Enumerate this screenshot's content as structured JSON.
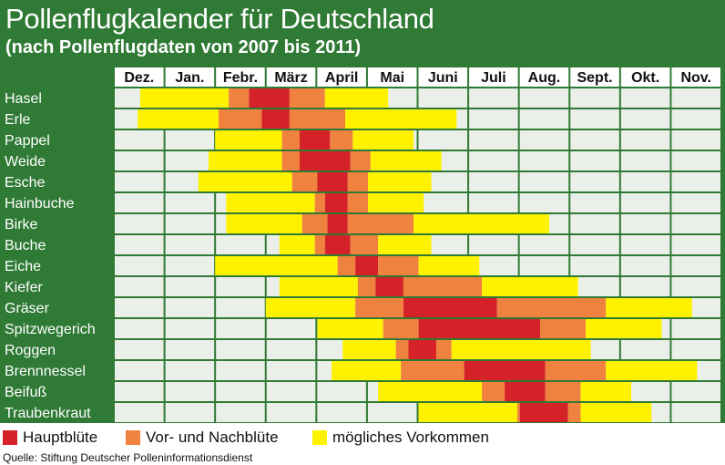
{
  "title": "Pollenflugkalender für Deutschland",
  "subtitle": "(nach Pollenflugdaten von 2007 bis 2011)",
  "source": "Quelle: Stiftung Deutscher Polleninformationsdienst",
  "colors": {
    "header": "#2f7a35",
    "grid_cell": "#eaf0e9",
    "hauptbluete": "#d52128",
    "vor_nachbluete": "#f0823f",
    "moegliches_vorkommen": "#fff200"
  },
  "legend": [
    {
      "label": "Hauptblüte",
      "color": "#d52128"
    },
    {
      "label": "Vor- und Nachblüte",
      "color": "#f0823f"
    },
    {
      "label": "mögliches Vorkommen",
      "color": "#fff200"
    }
  ],
  "chart_data": {
    "type": "heatmap",
    "x_unit": "month index (0 = Dez. start, 12 = Nov. end)",
    "months": [
      "Dez.",
      "Jan.",
      "Febr.",
      "März",
      "April",
      "Mai",
      "Juni",
      "Juli",
      "Aug.",
      "Sept.",
      "Okt.",
      "Nov."
    ],
    "rows": [
      {
        "plant": "Hasel",
        "segments": [
          {
            "start": 0.52,
            "end": 2.27,
            "level": "moeglich"
          },
          {
            "start": 2.27,
            "end": 2.67,
            "level": "vornach"
          },
          {
            "start": 2.67,
            "end": 3.47,
            "level": "haupt"
          },
          {
            "start": 3.47,
            "end": 4.17,
            "level": "vornach"
          },
          {
            "start": 4.17,
            "end": 5.42,
            "level": "moeglich"
          }
        ]
      },
      {
        "plant": "Erle",
        "segments": [
          {
            "start": 0.47,
            "end": 2.07,
            "level": "moeglich"
          },
          {
            "start": 2.07,
            "end": 2.92,
            "level": "vornach"
          },
          {
            "start": 2.92,
            "end": 3.47,
            "level": "haupt"
          },
          {
            "start": 3.47,
            "end": 4.57,
            "level": "vornach"
          },
          {
            "start": 4.57,
            "end": 6.77,
            "level": "moeglich"
          }
        ]
      },
      {
        "plant": "Pappel",
        "segments": [
          {
            "start": 2.0,
            "end": 3.32,
            "level": "moeglich"
          },
          {
            "start": 3.32,
            "end": 3.67,
            "level": "vornach"
          },
          {
            "start": 3.67,
            "end": 4.27,
            "level": "haupt"
          },
          {
            "start": 4.27,
            "end": 4.72,
            "level": "vornach"
          },
          {
            "start": 4.72,
            "end": 5.92,
            "level": "moeglich"
          }
        ]
      },
      {
        "plant": "Weide",
        "segments": [
          {
            "start": 1.87,
            "end": 3.32,
            "level": "moeglich"
          },
          {
            "start": 3.32,
            "end": 3.67,
            "level": "vornach"
          },
          {
            "start": 3.67,
            "end": 4.67,
            "level": "haupt"
          },
          {
            "start": 4.67,
            "end": 5.07,
            "level": "vornach"
          },
          {
            "start": 5.07,
            "end": 6.47,
            "level": "moeglich"
          }
        ]
      },
      {
        "plant": "Esche",
        "segments": [
          {
            "start": 1.67,
            "end": 3.52,
            "level": "moeglich"
          },
          {
            "start": 3.52,
            "end": 4.02,
            "level": "vornach"
          },
          {
            "start": 4.02,
            "end": 4.62,
            "level": "haupt"
          },
          {
            "start": 4.62,
            "end": 5.02,
            "level": "vornach"
          },
          {
            "start": 5.02,
            "end": 6.27,
            "level": "moeglich"
          }
        ]
      },
      {
        "plant": "Hainbuche",
        "segments": [
          {
            "start": 2.22,
            "end": 3.97,
            "level": "moeglich"
          },
          {
            "start": 3.97,
            "end": 4.17,
            "level": "vornach"
          },
          {
            "start": 4.17,
            "end": 4.62,
            "level": "haupt"
          },
          {
            "start": 4.62,
            "end": 5.02,
            "level": "vornach"
          },
          {
            "start": 5.02,
            "end": 6.12,
            "level": "moeglich"
          }
        ]
      },
      {
        "plant": "Birke",
        "segments": [
          {
            "start": 2.22,
            "end": 3.72,
            "level": "moeglich"
          },
          {
            "start": 3.72,
            "end": 4.22,
            "level": "vornach"
          },
          {
            "start": 4.22,
            "end": 4.62,
            "level": "haupt"
          },
          {
            "start": 4.62,
            "end": 5.92,
            "level": "vornach"
          },
          {
            "start": 5.92,
            "end": 8.6,
            "level": "moeglich"
          }
        ]
      },
      {
        "plant": "Buche",
        "segments": [
          {
            "start": 3.27,
            "end": 3.97,
            "level": "moeglich"
          },
          {
            "start": 3.97,
            "end": 4.17,
            "level": "vornach"
          },
          {
            "start": 4.17,
            "end": 4.67,
            "level": "haupt"
          },
          {
            "start": 4.67,
            "end": 5.22,
            "level": "vornach"
          },
          {
            "start": 5.22,
            "end": 6.27,
            "level": "moeglich"
          }
        ]
      },
      {
        "plant": "Eiche",
        "segments": [
          {
            "start": 2.0,
            "end": 4.42,
            "level": "moeglich"
          },
          {
            "start": 4.42,
            "end": 4.77,
            "level": "vornach"
          },
          {
            "start": 4.77,
            "end": 5.22,
            "level": "haupt"
          },
          {
            "start": 5.22,
            "end": 6.02,
            "level": "vornach"
          },
          {
            "start": 6.02,
            "end": 7.22,
            "level": "moeglich"
          }
        ]
      },
      {
        "plant": "Kiefer",
        "segments": [
          {
            "start": 3.27,
            "end": 4.82,
            "level": "moeglich"
          },
          {
            "start": 4.82,
            "end": 5.17,
            "level": "vornach"
          },
          {
            "start": 5.17,
            "end": 5.72,
            "level": "haupt"
          },
          {
            "start": 5.72,
            "end": 7.27,
            "level": "vornach"
          },
          {
            "start": 7.27,
            "end": 9.17,
            "level": "moeglich"
          }
        ]
      },
      {
        "plant": "Gräser",
        "segments": [
          {
            "start": 3.0,
            "end": 4.77,
            "level": "moeglich"
          },
          {
            "start": 4.77,
            "end": 5.72,
            "level": "vornach"
          },
          {
            "start": 5.72,
            "end": 7.57,
            "level": "haupt"
          },
          {
            "start": 7.57,
            "end": 9.72,
            "level": "vornach"
          },
          {
            "start": 9.72,
            "end": 11.42,
            "level": "moeglich"
          }
        ]
      },
      {
        "plant": "Spitzwegerich",
        "segments": [
          {
            "start": 4.02,
            "end": 5.32,
            "level": "moeglich"
          },
          {
            "start": 5.32,
            "end": 6.02,
            "level": "vornach"
          },
          {
            "start": 6.02,
            "end": 8.42,
            "level": "haupt"
          },
          {
            "start": 8.42,
            "end": 9.32,
            "level": "vornach"
          },
          {
            "start": 9.32,
            "end": 10.82,
            "level": "moeglich"
          }
        ]
      },
      {
        "plant": "Roggen",
        "segments": [
          {
            "start": 4.52,
            "end": 5.57,
            "level": "moeglich"
          },
          {
            "start": 5.57,
            "end": 5.82,
            "level": "vornach"
          },
          {
            "start": 5.82,
            "end": 6.37,
            "level": "haupt"
          },
          {
            "start": 6.37,
            "end": 6.67,
            "level": "vornach"
          },
          {
            "start": 6.67,
            "end": 9.42,
            "level": "moeglich"
          }
        ]
      },
      {
        "plant": "Brennnessel",
        "segments": [
          {
            "start": 4.3,
            "end": 5.67,
            "level": "moeglich"
          },
          {
            "start": 5.67,
            "end": 6.92,
            "level": "vornach"
          },
          {
            "start": 6.92,
            "end": 8.52,
            "level": "haupt"
          },
          {
            "start": 8.52,
            "end": 9.72,
            "level": "vornach"
          },
          {
            "start": 9.72,
            "end": 11.52,
            "level": "moeglich"
          }
        ]
      },
      {
        "plant": "Beifuß",
        "segments": [
          {
            "start": 5.22,
            "end": 7.27,
            "level": "moeglich"
          },
          {
            "start": 7.27,
            "end": 7.72,
            "level": "vornach"
          },
          {
            "start": 7.72,
            "end": 8.52,
            "level": "haupt"
          },
          {
            "start": 8.52,
            "end": 9.22,
            "level": "vornach"
          },
          {
            "start": 9.22,
            "end": 10.22,
            "level": "moeglich"
          }
        ]
      },
      {
        "plant": "Traubenkraut",
        "segments": [
          {
            "start": 6.02,
            "end": 7.97,
            "level": "moeglich"
          },
          {
            "start": 7.97,
            "end": 8.02,
            "level": "vornach"
          },
          {
            "start": 8.02,
            "end": 8.97,
            "level": "haupt"
          },
          {
            "start": 8.97,
            "end": 9.22,
            "level": "vornach"
          },
          {
            "start": 9.22,
            "end": 10.62,
            "level": "moeglich"
          }
        ]
      }
    ],
    "levels": {
      "haupt": "Hauptblüte",
      "vornach": "Vor- und Nachblüte",
      "moeglich": "mögliches Vorkommen"
    }
  }
}
